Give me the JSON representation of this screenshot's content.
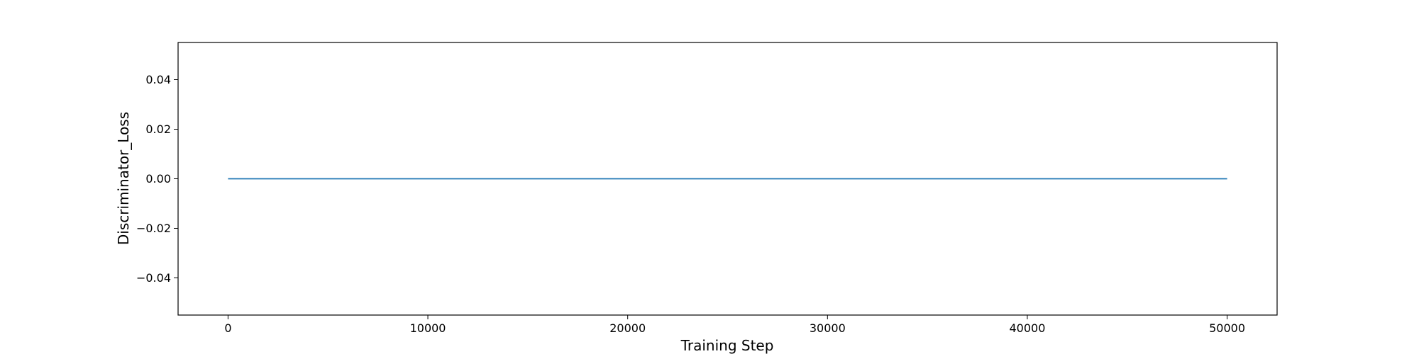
{
  "chart_data": {
    "type": "line",
    "title": "",
    "xlabel": "Training Step",
    "ylabel": "Discriminator_Loss",
    "xlim": [
      -2500,
      52500
    ],
    "ylim": [
      -0.055,
      0.055
    ],
    "x_ticks": [
      0,
      10000,
      20000,
      30000,
      40000,
      50000
    ],
    "x_tick_labels": [
      "0",
      "10000",
      "20000",
      "30000",
      "40000",
      "50000"
    ],
    "y_ticks": [
      -0.04,
      -0.02,
      0.0,
      0.02,
      0.04
    ],
    "y_tick_labels": [
      "−0.04",
      "−0.02",
      "0.00",
      "0.02",
      "0.04"
    ],
    "grid": false,
    "series": [
      {
        "color": "#1f77b4",
        "x": [
          0,
          50000
        ],
        "y": [
          0.0,
          0.0
        ]
      }
    ]
  }
}
